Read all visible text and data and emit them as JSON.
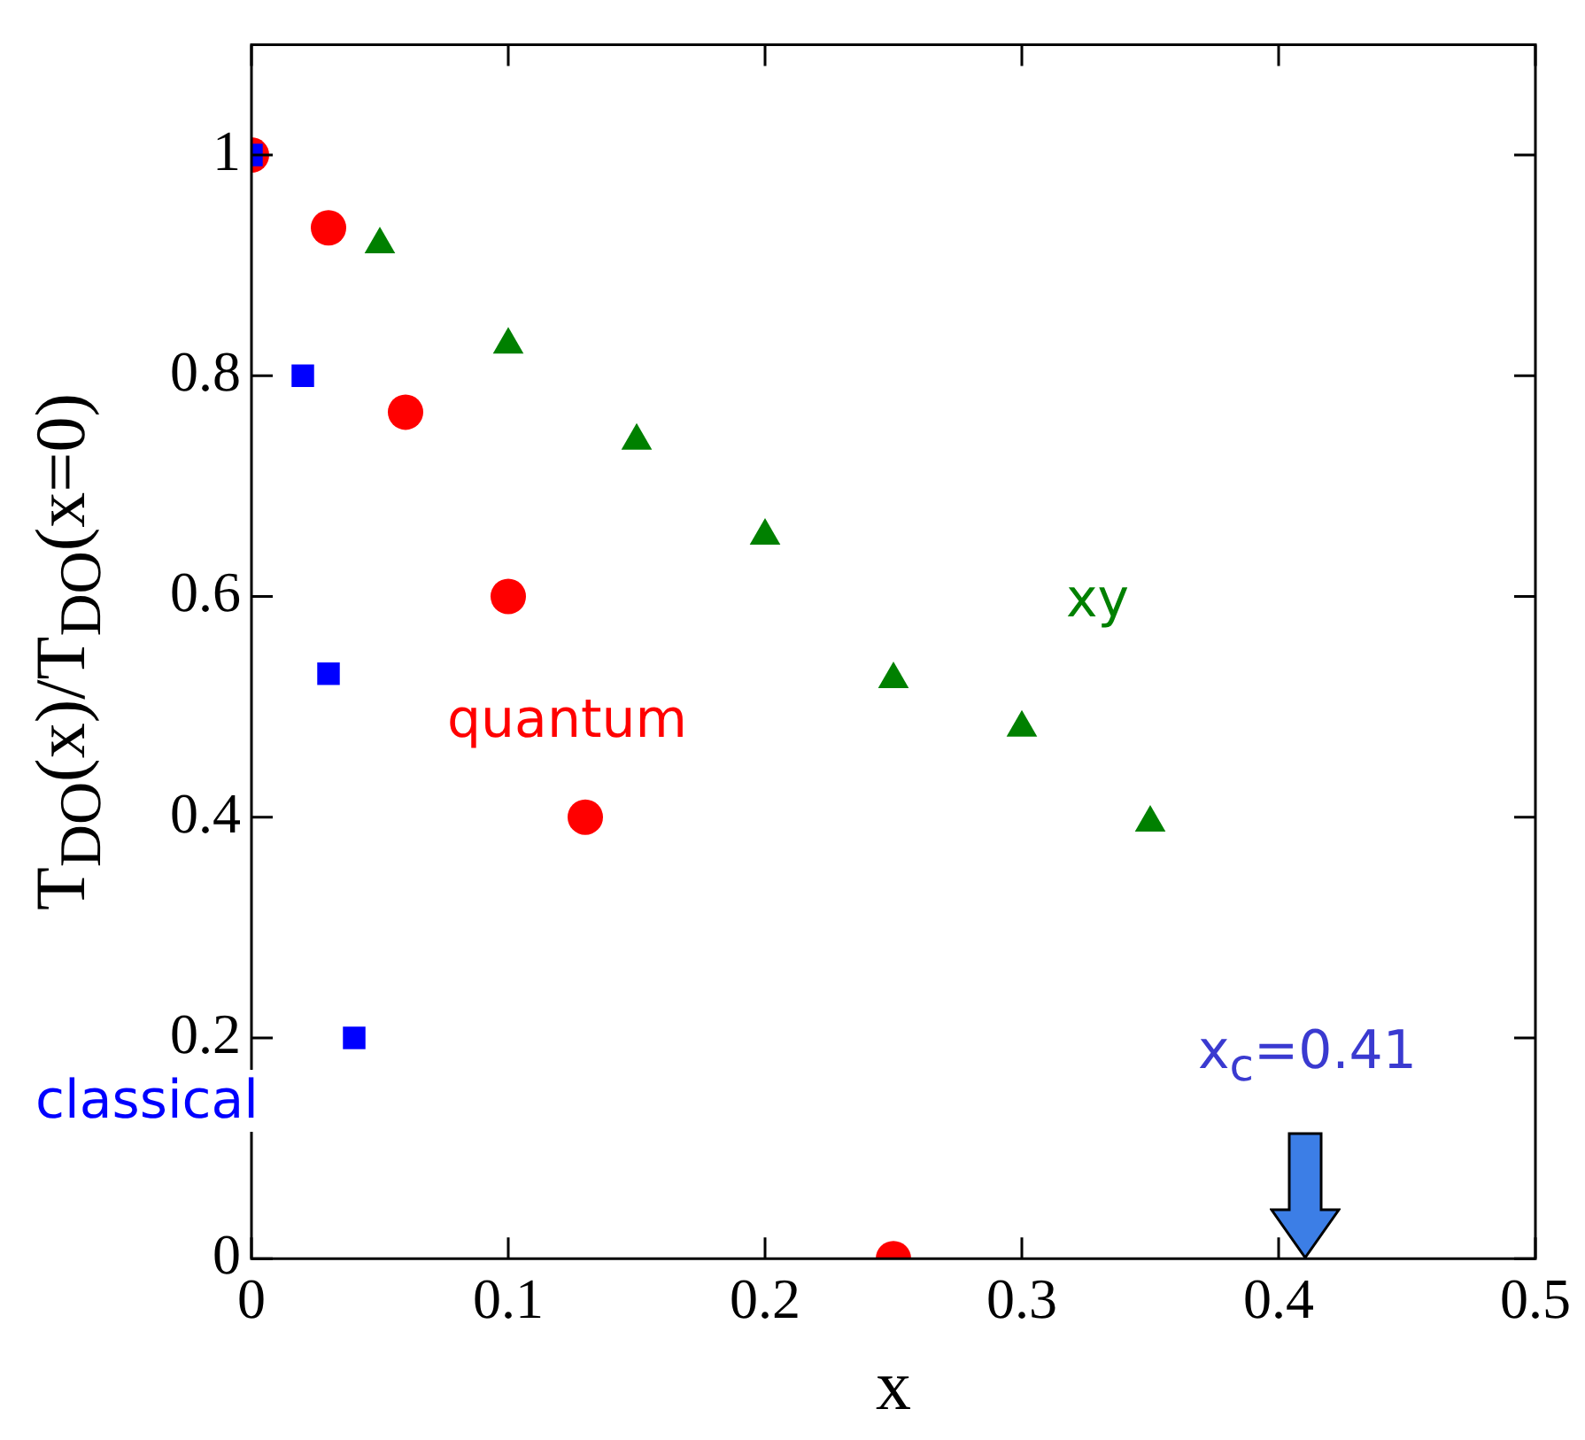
{
  "chart_data": {
    "type": "scatter",
    "xlabel": "x",
    "ylabel": "T$_{DO}$(x)/T$_{DO}$(x=0)",
    "xlim": [
      0,
      0.5
    ],
    "xticks": [
      0,
      0.1,
      0.2,
      0.3,
      0.4,
      0.5
    ],
    "ylim": [
      0,
      1.1
    ],
    "yticks": [
      0,
      0.2,
      0.4,
      0.6,
      0.8,
      1
    ],
    "grid": false,
    "legend": false,
    "series": [
      {
        "name": "classical",
        "color": "#0000ff",
        "marker": "square",
        "x": [
          0,
          0.02,
          0.03,
          0.04
        ],
        "values": [
          1.0,
          0.8,
          0.53,
          0.2
        ]
      },
      {
        "name": "quantum",
        "color": "#ff0000",
        "marker": "circle",
        "x": [
          0,
          0.03,
          0.06,
          0.1,
          0.13,
          0.25
        ],
        "values": [
          1.0,
          0.934,
          0.767,
          0.6,
          0.4,
          0
        ]
      },
      {
        "name": "xy",
        "color": "#008000",
        "marker": "triangle",
        "x": [
          0.05,
          0.1,
          0.15,
          0.2,
          0.25,
          0.3,
          0.35
        ],
        "values": [
          0.919,
          0.828,
          0.741,
          0.655,
          0.525,
          0.481,
          0.395
        ]
      }
    ],
    "annotations": [
      "x$_{c}$=0.41"
    ]
  }
}
